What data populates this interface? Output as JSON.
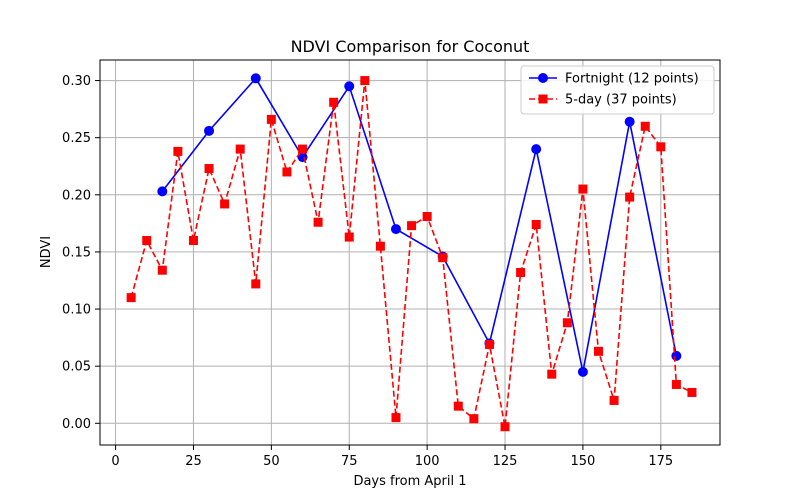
{
  "chart_data": {
    "type": "line",
    "title": "NDVI Comparison for Coconut",
    "xlabel": "Days from April 1",
    "ylabel": "NDVI",
    "xlim": [
      -5,
      194
    ],
    "ylim": [
      -0.019,
      0.318
    ],
    "xticks": [
      0,
      25,
      50,
      75,
      100,
      125,
      150,
      175
    ],
    "yticks": [
      0.0,
      0.05,
      0.1,
      0.15,
      0.2,
      0.25,
      0.3
    ],
    "xtick_labels": [
      "0",
      "25",
      "50",
      "75",
      "100",
      "125",
      "150",
      "175"
    ],
    "ytick_labels": [
      "0.00",
      "0.05",
      "0.10",
      "0.15",
      "0.20",
      "0.25",
      "0.30"
    ],
    "grid": true,
    "legend_position": "top-right",
    "series": [
      {
        "name": "Fortnight (12 points)",
        "color": "#0000ff",
        "line_style": "solid",
        "marker": "circle",
        "x": [
          15,
          30,
          45,
          60,
          75,
          90,
          105,
          120,
          135,
          150,
          165,
          180
        ],
        "y": [
          0.203,
          0.256,
          0.302,
          0.233,
          0.295,
          0.17,
          0.146,
          0.07,
          0.24,
          0.045,
          0.264,
          0.059
        ]
      },
      {
        "name": "5-day (37 points)",
        "color": "#ff0000",
        "line_style": "dashed",
        "marker": "square",
        "x": [
          5,
          10,
          15,
          20,
          25,
          30,
          35,
          40,
          45,
          50,
          55,
          60,
          65,
          70,
          75,
          80,
          85,
          90,
          95,
          100,
          105,
          110,
          115,
          120,
          125,
          130,
          135,
          140,
          145,
          150,
          155,
          160,
          165,
          170,
          175,
          180,
          185
        ],
        "y": [
          0.11,
          0.16,
          0.134,
          0.238,
          0.16,
          0.223,
          0.192,
          0.24,
          0.122,
          0.266,
          0.22,
          0.24,
          0.176,
          0.281,
          0.163,
          0.3,
          0.155,
          0.005,
          0.173,
          0.181,
          0.145,
          0.015,
          0.004,
          0.069,
          -0.003,
          0.132,
          0.174,
          0.043,
          0.088,
          0.205,
          0.063,
          0.02,
          0.198,
          0.26,
          0.242,
          0.034,
          0.027
        ]
      }
    ]
  }
}
